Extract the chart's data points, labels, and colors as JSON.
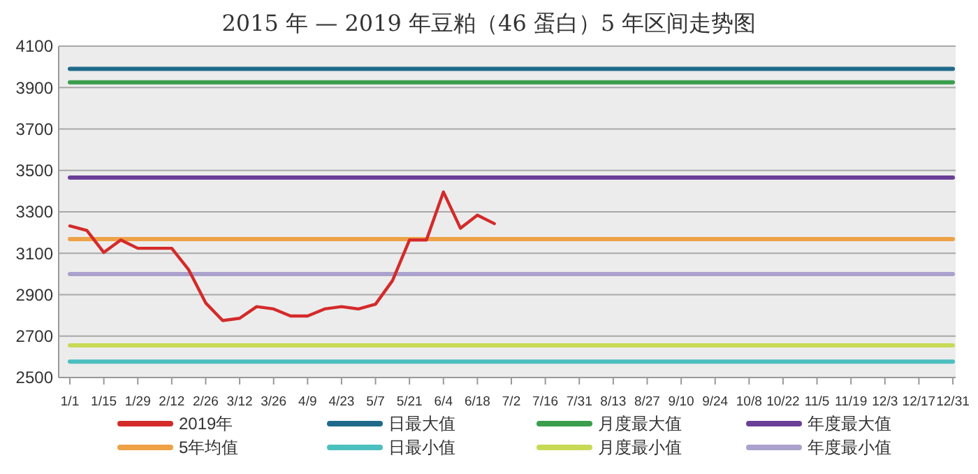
{
  "chart_data": {
    "type": "line",
    "title": "2015 年 — 2019 年豆粕（46 蛋白）5 年区间走势图",
    "categories": [
      "1/1",
      null,
      "1/15",
      null,
      "1/29",
      null,
      "2/12",
      null,
      "2/26",
      null,
      "3/12",
      null,
      "3/26",
      null,
      "4/9",
      null,
      "4/23",
      null,
      "5/7",
      null,
      "5/21",
      null,
      "6/4",
      null,
      "6/18",
      null,
      "7/2",
      null,
      "7/16",
      null,
      "7/31",
      null,
      "8/13",
      null,
      "8/27",
      null,
      "9/10",
      null,
      "9/24",
      null,
      "10/8",
      null,
      "10/22",
      null,
      "11/5",
      null,
      "11/19",
      null,
      "12/3",
      null,
      "12/17",
      null,
      "12/31"
    ],
    "ylim": [
      2500,
      4100
    ],
    "yticks": [
      2500,
      2700,
      2900,
      3100,
      3300,
      3500,
      3700,
      3900,
      4100
    ],
    "grid": "y",
    "legend": "bottom",
    "line_style": "solid",
    "marker": "none",
    "series": [
      {
        "name": "2019年",
        "color": "#d42a2a",
        "values": [
          3232,
          3210,
          3104,
          3164,
          3124,
          3124,
          3124,
          3020,
          2860,
          2775,
          2786,
          2842,
          2831,
          2797,
          2797,
          2831,
          2842,
          2831,
          2854,
          2968,
          3164,
          3164,
          3396,
          3221,
          3284,
          3243,
          null,
          null,
          null,
          null,
          null,
          null,
          null,
          null,
          null,
          null,
          null,
          null,
          null,
          null,
          null,
          null,
          null,
          null,
          null,
          null,
          null,
          null,
          null,
          null,
          null,
          null,
          null
        ]
      },
      {
        "name": "日最大值",
        "color": "#1f6a8a",
        "values": [
          3990,
          3990,
          3990,
          3990,
          3990,
          3990,
          3990,
          3990,
          3990,
          3990,
          3990,
          3990,
          3990,
          3990,
          3990,
          3990,
          3990,
          3990,
          3990,
          3990,
          3990,
          3990,
          3990,
          3990,
          3990,
          3990,
          3990,
          3990,
          3990,
          3990,
          3990,
          3990,
          3990,
          3990,
          3990,
          3990,
          3990,
          3990,
          3990,
          3990,
          3990,
          3990,
          3990,
          3990,
          3990,
          3990,
          3990,
          3990,
          3990,
          3990,
          3990,
          3990,
          3990
        ]
      },
      {
        "name": "月度最大值",
        "color": "#3a9e4c",
        "values": [
          3925,
          3925,
          3925,
          3925,
          3925,
          3925,
          3925,
          3925,
          3925,
          3925,
          3925,
          3925,
          3925,
          3925,
          3925,
          3925,
          3925,
          3925,
          3925,
          3925,
          3925,
          3925,
          3925,
          3925,
          3925,
          3925,
          3925,
          3925,
          3925,
          3925,
          3925,
          3925,
          3925,
          3925,
          3925,
          3925,
          3925,
          3925,
          3925,
          3925,
          3925,
          3925,
          3925,
          3925,
          3925,
          3925,
          3925,
          3925,
          3925,
          3925,
          3925,
          3925,
          3925
        ]
      },
      {
        "name": "年度最大值",
        "color": "#6b3f98",
        "values": [
          3465,
          3465,
          3465,
          3465,
          3465,
          3465,
          3465,
          3465,
          3465,
          3465,
          3465,
          3465,
          3465,
          3465,
          3465,
          3465,
          3465,
          3465,
          3465,
          3465,
          3465,
          3465,
          3465,
          3465,
          3465,
          3465,
          3465,
          3465,
          3465,
          3465,
          3465,
          3465,
          3465,
          3465,
          3465,
          3465,
          3465,
          3465,
          3465,
          3465,
          3465,
          3465,
          3465,
          3465,
          3465,
          3465,
          3465,
          3465,
          3465,
          3465,
          3465,
          3465,
          3465
        ]
      },
      {
        "name": "5年均值",
        "color": "#eea145",
        "values": [
          3168,
          3168,
          3168,
          3168,
          3168,
          3168,
          3168,
          3168,
          3168,
          3168,
          3168,
          3168,
          3168,
          3168,
          3168,
          3168,
          3168,
          3168,
          3168,
          3168,
          3168,
          3168,
          3168,
          3168,
          3168,
          3168,
          3168,
          3168,
          3168,
          3168,
          3168,
          3168,
          3168,
          3168,
          3168,
          3168,
          3168,
          3168,
          3168,
          3168,
          3168,
          3168,
          3168,
          3168,
          3168,
          3168,
          3168,
          3168,
          3168,
          3168,
          3168,
          3168,
          3168
        ]
      },
      {
        "name": "日最小值",
        "color": "#4cbfbf",
        "values": [
          2577,
          2577,
          2577,
          2577,
          2577,
          2577,
          2577,
          2577,
          2577,
          2577,
          2577,
          2577,
          2577,
          2577,
          2577,
          2577,
          2577,
          2577,
          2577,
          2577,
          2577,
          2577,
          2577,
          2577,
          2577,
          2577,
          2577,
          2577,
          2577,
          2577,
          2577,
          2577,
          2577,
          2577,
          2577,
          2577,
          2577,
          2577,
          2577,
          2577,
          2577,
          2577,
          2577,
          2577,
          2577,
          2577,
          2577,
          2577,
          2577,
          2577,
          2577,
          2577,
          2577
        ]
      },
      {
        "name": "月度最小值",
        "color": "#c8da55",
        "values": [
          2655,
          2655,
          2655,
          2655,
          2655,
          2655,
          2655,
          2655,
          2655,
          2655,
          2655,
          2655,
          2655,
          2655,
          2655,
          2655,
          2655,
          2655,
          2655,
          2655,
          2655,
          2655,
          2655,
          2655,
          2655,
          2655,
          2655,
          2655,
          2655,
          2655,
          2655,
          2655,
          2655,
          2655,
          2655,
          2655,
          2655,
          2655,
          2655,
          2655,
          2655,
          2655,
          2655,
          2655,
          2655,
          2655,
          2655,
          2655,
          2655,
          2655,
          2655,
          2655,
          2655
        ]
      },
      {
        "name": "年度最小值",
        "color": "#aaa2cc",
        "values": [
          3000,
          3000,
          3000,
          3000,
          3000,
          3000,
          3000,
          3000,
          3000,
          3000,
          3000,
          3000,
          3000,
          3000,
          3000,
          3000,
          3000,
          3000,
          3000,
          3000,
          3000,
          3000,
          3000,
          3000,
          3000,
          3000,
          3000,
          3000,
          3000,
          3000,
          3000,
          3000,
          3000,
          3000,
          3000,
          3000,
          3000,
          3000,
          3000,
          3000,
          3000,
          3000,
          3000,
          3000,
          3000,
          3000,
          3000,
          3000,
          3000,
          3000,
          3000,
          3000,
          3000
        ]
      }
    ]
  }
}
